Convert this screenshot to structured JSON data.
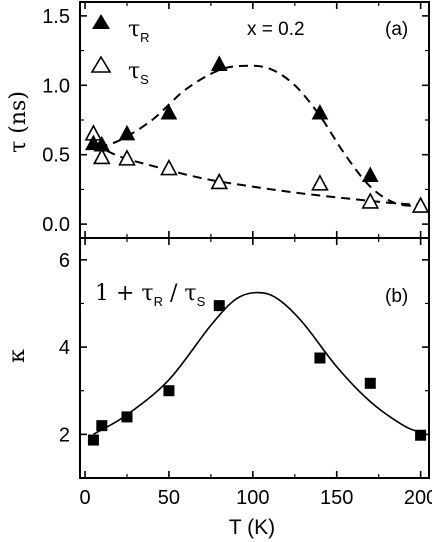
{
  "chart_data": [
    {
      "panel": "(a)",
      "type": "scatter",
      "annotation": "x = 0.2",
      "ylabel": "τ (ns)",
      "ylim": [
        -0.1,
        1.6
      ],
      "yticks": [
        "0.0",
        "0.5",
        "1.0",
        "1.5"
      ],
      "xlim": [
        -3,
        205
      ],
      "series": [
        {
          "name": "τR",
          "name_main": "τ",
          "name_sub": "R",
          "marker": "filled-triangle",
          "x": [
            5,
            10,
            25,
            50,
            80,
            140,
            170
          ],
          "y": [
            0.58,
            0.57,
            0.65,
            0.8,
            1.15,
            0.8,
            0.35
          ]
        },
        {
          "name": "τS",
          "name_main": "τ",
          "name_sub": "S",
          "marker": "open-triangle",
          "x": [
            5,
            10,
            25,
            50,
            80,
            140,
            170,
            200
          ],
          "y": [
            0.65,
            0.48,
            0.47,
            0.4,
            0.3,
            0.29,
            0.16,
            0.13
          ]
        }
      ]
    },
    {
      "panel": "(b)",
      "type": "scatter",
      "formula": "1 + τR / τS",
      "formula_parts": [
        "1 + τ",
        "R",
        " / τ",
        "S"
      ],
      "ylabel": "κ",
      "ylim": [
        1.0,
        6.5
      ],
      "yticks": [
        "2",
        "4",
        "6"
      ],
      "xlabel": "T (K)",
      "xlim": [
        -3,
        205
      ],
      "xticks": [
        "0",
        "50",
        "100",
        "150",
        "200"
      ],
      "series": [
        {
          "marker": "filled-square",
          "x": [
            5,
            10,
            25,
            50,
            80,
            140,
            170,
            200
          ],
          "y": [
            1.87,
            2.2,
            2.4,
            3.0,
            4.95,
            3.75,
            3.17,
            1.98
          ]
        }
      ]
    }
  ]
}
